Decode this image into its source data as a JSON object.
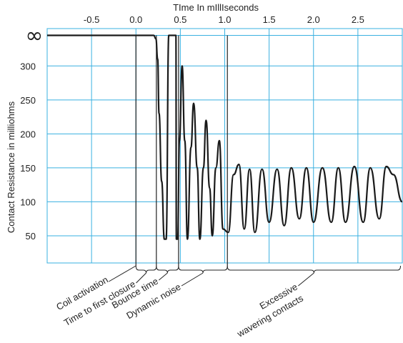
{
  "chart_data": {
    "type": "line",
    "title": "",
    "xlabel": "TIme In mIllIseconds",
    "ylabel": "Contact Resistance in milliohms",
    "xlim": [
      -1.0,
      3.0
    ],
    "ylim": [
      10,
      355
    ],
    "x_ticks": [
      -0.5,
      0.0,
      0.5,
      1.0,
      1.5,
      2.0,
      2.5
    ],
    "x_tick_labels": [
      "-0.5",
      "0.0",
      "0.5",
      "1.0",
      "1.5",
      "2.0",
      "2.5"
    ],
    "y_ticks": [
      50,
      100,
      150,
      200,
      250,
      300
    ],
    "y_tick_labels": [
      "50",
      "100",
      "150",
      "200",
      "250",
      "300"
    ],
    "infinity_label": "∞",
    "grid": true,
    "grid_color": "#3ab0e0",
    "line_color": "#1a1a1a",
    "series": [
      {
        "name": "",
        "x": [
          -1.0,
          0.2,
          0.225,
          0.245,
          0.26,
          0.29,
          0.32,
          0.34,
          0.37,
          0.38,
          0.4,
          0.45,
          0.455,
          0.47,
          0.49,
          0.52,
          0.55,
          0.58,
          0.62,
          0.65,
          0.69,
          0.72,
          0.76,
          0.79,
          0.83,
          0.86,
          0.9,
          0.94,
          0.98,
          1.04,
          1.1,
          1.16,
          1.22,
          1.28,
          1.34,
          1.42,
          1.5,
          1.59,
          1.67,
          1.75,
          1.84,
          1.92,
          2.0,
          2.1,
          2.2,
          2.28,
          2.36,
          2.46,
          2.56,
          2.64,
          2.74,
          2.82,
          2.9,
          3.0
        ],
        "y": [
          345,
          345,
          340,
          310,
          230,
          130,
          45,
          45,
          345,
          345,
          345,
          345,
          45,
          45,
          190,
          300,
          190,
          45,
          180,
          245,
          150,
          45,
          150,
          220,
          120,
          50,
          150,
          190,
          60,
          55,
          140,
          155,
          60,
          148,
          55,
          148,
          70,
          148,
          65,
          150,
          75,
          150,
          70,
          150,
          70,
          150,
          70,
          152,
          70,
          150,
          75,
          152,
          140,
          100
        ]
      }
    ],
    "annotations": [
      {
        "label": "Coil activation",
        "x": 0.0
      },
      {
        "label": "Time to first closure",
        "x_start": 0.0,
        "x_end": 0.23
      },
      {
        "label": "Bounce time",
        "x_start": 0.23,
        "x_end": 0.48
      },
      {
        "label": "Dynamic noise",
        "x_start": 0.48,
        "x_end": 1.03
      },
      {
        "label": "Excessive",
        "x_start": 1.03,
        "x_end": 3.0
      },
      {
        "label": "wavering contacts",
        "x_start": 1.03,
        "x_end": 3.0
      }
    ]
  }
}
